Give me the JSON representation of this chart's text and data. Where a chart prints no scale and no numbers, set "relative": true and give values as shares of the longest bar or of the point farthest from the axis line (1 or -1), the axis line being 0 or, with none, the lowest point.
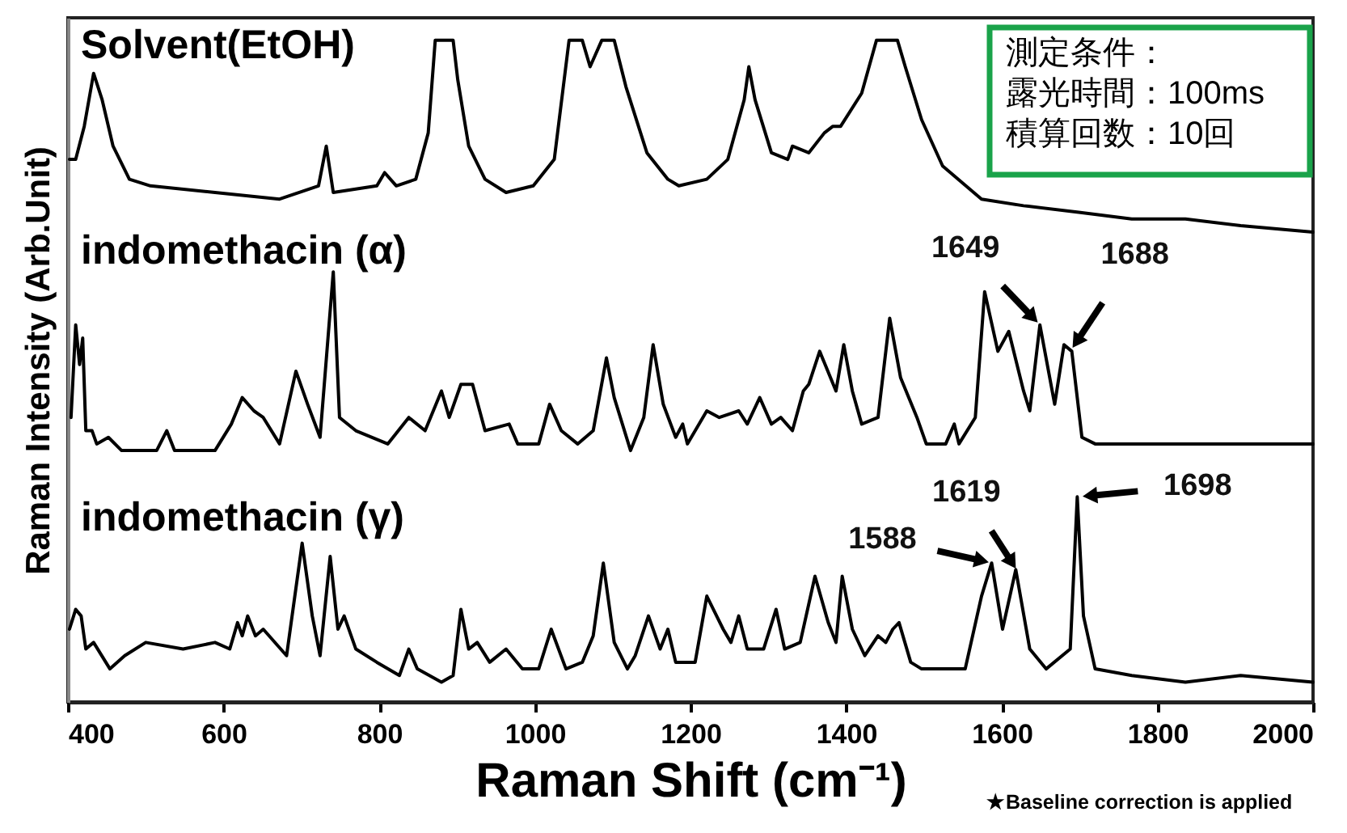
{
  "chart_data": {
    "type": "line",
    "relative": true,
    "xlabel": "Raman Shift (cm⁻¹)",
    "ylabel": "Raman Intensity (Arb.Unit)",
    "xlim": [
      400,
      2000
    ],
    "xticks": [
      400,
      600,
      800,
      1000,
      1200,
      1400,
      1600,
      1800,
      2000
    ],
    "grid": false,
    "series": [
      {
        "name": "Solvent(EtOH)",
        "color": "#000000",
        "x": [
          402,
          410,
          421,
          433,
          444,
          458,
          479,
          506,
          589,
          672,
          722,
          732,
          741,
          797,
          807,
          822,
          847,
          863,
          872,
          895,
          901,
          915,
          936,
          963,
          998,
          1025,
          1044,
          1061,
          1071,
          1086,
          1102,
          1117,
          1144,
          1171,
          1185,
          1221,
          1248,
          1269,
          1275,
          1283,
          1304,
          1325,
          1331,
          1352,
          1372,
          1383,
          1393,
          1420,
          1439,
          1466,
          1476,
          1497,
          1524,
          1574,
          1628,
          1699,
          1767,
          1836,
          1907,
          2000
        ],
        "values": [
          0.82,
          0.82,
          0.87,
          0.95,
          0.91,
          0.84,
          0.79,
          0.78,
          0.77,
          0.76,
          0.78,
          0.84,
          0.77,
          0.78,
          0.8,
          0.78,
          0.79,
          0.86,
          1.0,
          1.0,
          0.94,
          0.84,
          0.79,
          0.77,
          0.78,
          0.82,
          1.0,
          1.0,
          0.96,
          1.0,
          1.0,
          0.93,
          0.83,
          0.79,
          0.78,
          0.79,
          0.82,
          0.91,
          0.96,
          0.91,
          0.83,
          0.82,
          0.84,
          0.83,
          0.86,
          0.87,
          0.87,
          0.92,
          1.0,
          1.0,
          0.96,
          0.88,
          0.81,
          0.76,
          0.75,
          0.74,
          0.73,
          0.73,
          0.72,
          0.71
        ]
      },
      {
        "name": "indomethacin (α)",
        "color": "#000000",
        "x": [
          404,
          410,
          415,
          419,
          423,
          431,
          437,
          452,
          469,
          514,
          527,
          537,
          568,
          589,
          610,
          624,
          639,
          651,
          672,
          693,
          708,
          724,
          741,
          749,
          770,
          811,
          838,
          859,
          880,
          890,
          905,
          920,
          936,
          967,
          978,
          1005,
          1019,
          1034,
          1055,
          1075,
          1092,
          1102,
          1123,
          1140,
          1152,
          1165,
          1181,
          1190,
          1196,
          1221,
          1237,
          1262,
          1273,
          1289,
          1304,
          1316,
          1331,
          1345,
          1352,
          1366,
          1387,
          1397,
          1408,
          1420,
          1441,
          1456,
          1470,
          1491,
          1503,
          1528,
          1539,
          1545,
          1566,
          1578,
          1595,
          1609,
          1628,
          1636,
          1649,
          1668,
          1680,
          1690,
          1703,
          1720,
          1836,
          2000
        ],
        "values": [
          0.43,
          0.57,
          0.51,
          0.55,
          0.41,
          0.41,
          0.39,
          0.4,
          0.38,
          0.38,
          0.41,
          0.38,
          0.38,
          0.38,
          0.42,
          0.46,
          0.44,
          0.43,
          0.39,
          0.5,
          0.45,
          0.4,
          0.65,
          0.43,
          0.41,
          0.39,
          0.43,
          0.41,
          0.47,
          0.43,
          0.48,
          0.48,
          0.41,
          0.42,
          0.39,
          0.39,
          0.45,
          0.41,
          0.39,
          0.41,
          0.52,
          0.46,
          0.38,
          0.43,
          0.54,
          0.45,
          0.4,
          0.42,
          0.39,
          0.44,
          0.43,
          0.44,
          0.42,
          0.46,
          0.42,
          0.43,
          0.41,
          0.47,
          0.48,
          0.53,
          0.47,
          0.54,
          0.47,
          0.42,
          0.43,
          0.58,
          0.49,
          0.43,
          0.39,
          0.39,
          0.42,
          0.39,
          0.43,
          0.62,
          0.53,
          0.56,
          0.47,
          0.44,
          0.57,
          0.45,
          0.54,
          0.53,
          0.4,
          0.39,
          0.39,
          0.39
        ]
      },
      {
        "name": "indomethacin (γ)",
        "color": "#000000",
        "x": [
          402,
          410,
          417,
          423,
          433,
          454,
          473,
          500,
          548,
          589,
          608,
          618,
          624,
          631,
          641,
          651,
          681,
          701,
          714,
          724,
          737,
          747,
          755,
          770,
          797,
          826,
          838,
          849,
          880,
          895,
          905,
          915,
          926,
          942,
          963,
          984,
          1005,
          1021,
          1040,
          1061,
          1075,
          1088,
          1102,
          1119,
          1129,
          1146,
          1161,
          1171,
          1181,
          1206,
          1221,
          1242,
          1252,
          1262,
          1273,
          1294,
          1310,
          1321,
          1341,
          1360,
          1377,
          1387,
          1395,
          1408,
          1424,
          1441,
          1451,
          1460,
          1468,
          1483,
          1497,
          1533,
          1553,
          1574,
          1587,
          1601,
          1618,
          1636,
          1657,
          1688,
          1697,
          1705,
          1720,
          1767,
          1836,
          1907,
          2000
        ],
        "values": [
          0.11,
          0.14,
          0.13,
          0.08,
          0.09,
          0.05,
          0.07,
          0.09,
          0.08,
          0.09,
          0.08,
          0.12,
          0.1,
          0.13,
          0.1,
          0.11,
          0.07,
          0.24,
          0.13,
          0.07,
          0.22,
          0.11,
          0.13,
          0.08,
          0.06,
          0.04,
          0.08,
          0.05,
          0.03,
          0.04,
          0.14,
          0.08,
          0.09,
          0.06,
          0.08,
          0.05,
          0.05,
          0.11,
          0.05,
          0.06,
          0.1,
          0.21,
          0.09,
          0.05,
          0.07,
          0.13,
          0.08,
          0.11,
          0.06,
          0.06,
          0.16,
          0.11,
          0.09,
          0.13,
          0.08,
          0.08,
          0.14,
          0.08,
          0.09,
          0.19,
          0.12,
          0.09,
          0.19,
          0.11,
          0.07,
          0.1,
          0.09,
          0.11,
          0.12,
          0.06,
          0.05,
          0.05,
          0.05,
          0.16,
          0.21,
          0.11,
          0.2,
          0.08,
          0.05,
          0.08,
          0.31,
          0.13,
          0.05,
          0.04,
          0.03,
          0.04,
          0.03
        ]
      }
    ],
    "annotations": [
      "測定条件：",
      "露光時間：100ms",
      "積算回数：10回",
      "★Baseline correction is applied",
      {
        "text": "1649",
        "x": 1649,
        "y": 0.57
      },
      {
        "text": "1688",
        "x": 1688,
        "y": 0.53
      },
      {
        "text": "1588",
        "x": 1588,
        "y": 0.21
      },
      {
        "text": "1619",
        "x": 1619,
        "y": 0.2
      },
      {
        "text": "1698",
        "x": 1698,
        "y": 0.31
      }
    ]
  }
}
